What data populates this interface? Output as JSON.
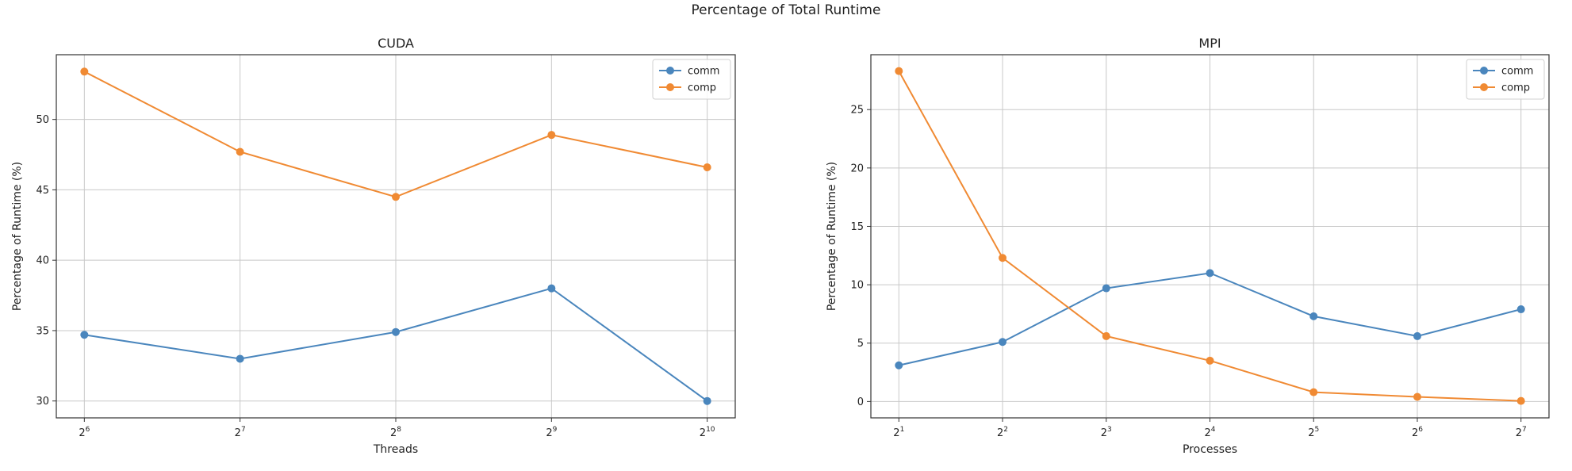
{
  "figure_title": "Percentage of Total Runtime",
  "colors": {
    "comm": "#4a86bd",
    "comp": "#f08a33",
    "grid": "#c8c8c8",
    "axes": "#333333"
  },
  "chart_data": [
    {
      "type": "line",
      "title": "CUDA",
      "xlabel": "Threads",
      "ylabel": "Percentage of Runtime (%)",
      "x_tick_labels": [
        {
          "base": "2",
          "exp": "6"
        },
        {
          "base": "2",
          "exp": "7"
        },
        {
          "base": "2",
          "exp": "8"
        },
        {
          "base": "2",
          "exp": "9"
        },
        {
          "base": "2",
          "exp": "10"
        }
      ],
      "x": [
        64,
        128,
        256,
        512,
        1024
      ],
      "x_scale": "log2",
      "yticks": [
        30,
        35,
        40,
        45,
        50
      ],
      "ylim": [
        28.8,
        54.6
      ],
      "grid": true,
      "legend": "top-right",
      "series": [
        {
          "name": "comm",
          "values": [
            34.7,
            33.0,
            34.9,
            38.0,
            30.0
          ]
        },
        {
          "name": "comp",
          "values": [
            53.4,
            47.7,
            44.5,
            48.9,
            46.6
          ]
        }
      ]
    },
    {
      "type": "line",
      "title": "MPI",
      "xlabel": "Processes",
      "ylabel": "Percentage of Runtime (%)",
      "x_tick_labels": [
        {
          "base": "2",
          "exp": "1"
        },
        {
          "base": "2",
          "exp": "2"
        },
        {
          "base": "2",
          "exp": "3"
        },
        {
          "base": "2",
          "exp": "4"
        },
        {
          "base": "2",
          "exp": "5"
        },
        {
          "base": "2",
          "exp": "6"
        },
        {
          "base": "2",
          "exp": "7"
        }
      ],
      "x": [
        2,
        4,
        8,
        16,
        32,
        64,
        128
      ],
      "x_scale": "log2",
      "yticks": [
        0,
        5,
        10,
        15,
        20,
        25
      ],
      "ylim": [
        -1.4,
        29.7
      ],
      "grid": true,
      "legend": "top-right",
      "series": [
        {
          "name": "comm",
          "values": [
            3.1,
            5.1,
            9.7,
            11.0,
            7.3,
            5.6,
            7.9
          ]
        },
        {
          "name": "comp",
          "values": [
            28.3,
            12.3,
            5.6,
            3.5,
            0.8,
            0.4,
            0.05
          ]
        }
      ]
    }
  ]
}
